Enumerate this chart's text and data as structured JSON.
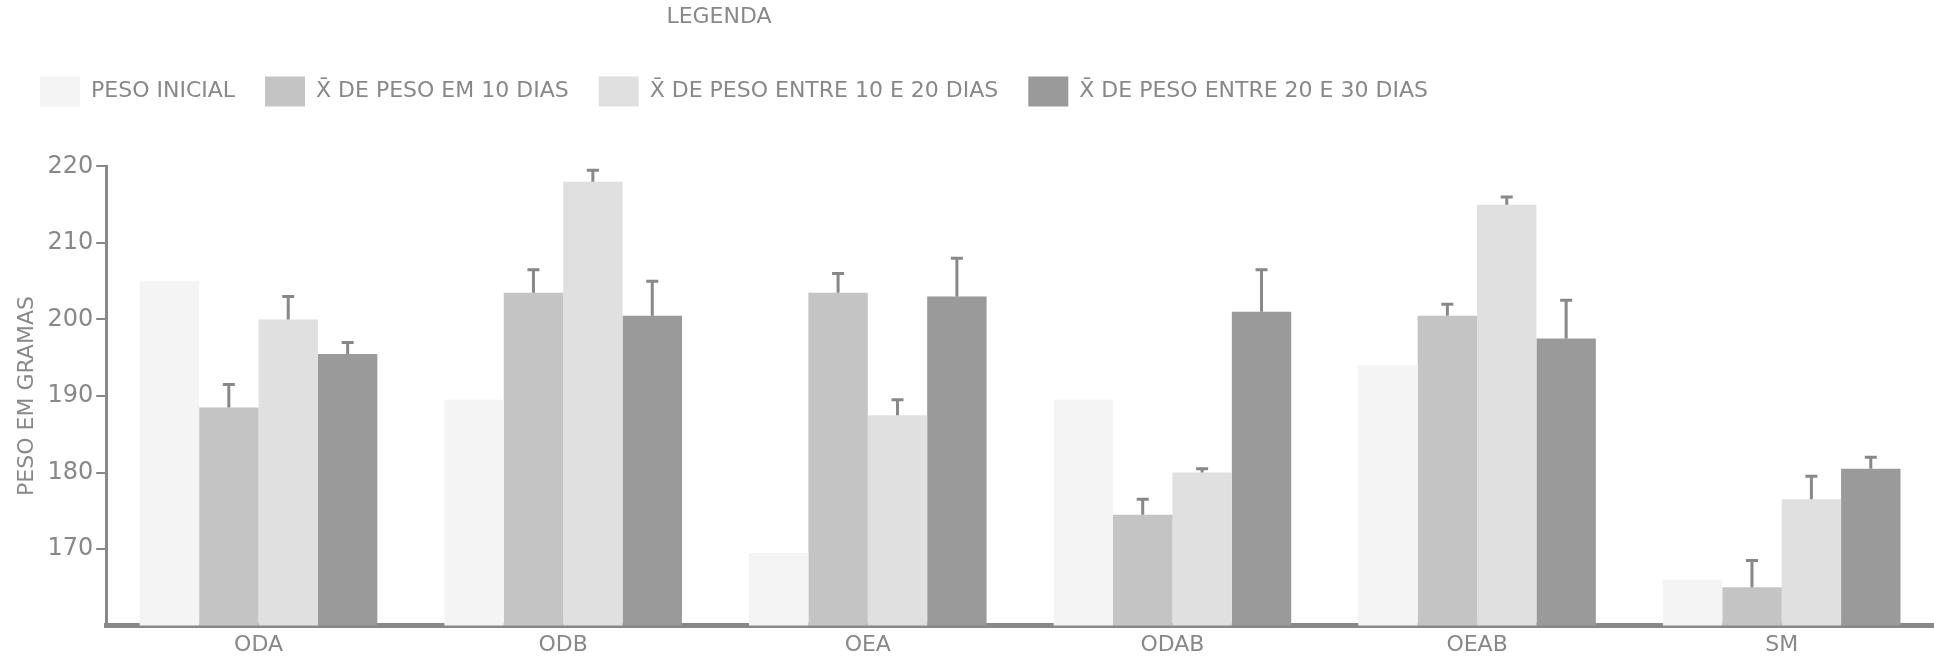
{
  "chart_data": {
    "type": "bar",
    "ylabel": "PESO EM GRAMAS",
    "legend_title": "LEGENDA",
    "legend": "top left",
    "categories": [
      "ODA",
      "ODB",
      "OEA",
      "ODAB",
      "OEAB",
      "SM"
    ],
    "ylim": [
      160,
      220
    ],
    "yticks": [
      170,
      180,
      190,
      200,
      210,
      220
    ],
    "grid": false,
    "series": [
      {
        "name": "PESO INICIAL",
        "color": "#f4f4f4",
        "values": [
          205,
          189.5,
          169.5,
          189.5,
          194,
          166
        ]
      },
      {
        "name": "X̄ DE PESO EM 10 DIAS",
        "color": "#c4c4c4",
        "values": [
          188.5,
          203.5,
          203.5,
          174.5,
          200.5,
          165
        ],
        "errors": [
          [
            188.5,
            191.5
          ],
          [
            203.5,
            206.5
          ],
          [
            203.5,
            206
          ],
          [
            174.5,
            176.5
          ],
          [
            200.5,
            202
          ],
          [
            165,
            168.5
          ]
        ]
      },
      {
        "name": "X̄ DE PESO ENTRE 10 E 20 DIAS",
        "color": "#e0e0e0",
        "values": [
          200,
          218,
          187.5,
          180,
          215,
          176.5
        ],
        "errors": [
          [
            200,
            203
          ],
          [
            218,
            219.5
          ],
          [
            187.5,
            189.5
          ],
          [
            180,
            180.5
          ],
          [
            215,
            216
          ],
          [
            176.5,
            179.5
          ]
        ]
      },
      {
        "name": "X̄ DE PESO ENTRE 20 E 30 DIAS",
        "color": "#9a9a9a",
        "values": [
          195.5,
          200.5,
          203,
          201,
          197.5,
          180.5
        ],
        "errors": [
          [
            195.5,
            197
          ],
          [
            200.5,
            205
          ],
          [
            203,
            208
          ],
          [
            201,
            206.5
          ],
          [
            197.5,
            202.5
          ],
          [
            180.5,
            182
          ]
        ]
      }
    ]
  }
}
